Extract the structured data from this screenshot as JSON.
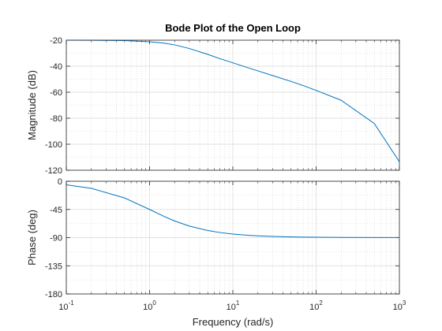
{
  "chart_data": {
    "type": "line",
    "title": "Bode Plot of the Open Loop",
    "xlabel": "Frequency  (rad/s)",
    "x_scale": "log",
    "xlim": [
      0.1,
      1000
    ],
    "x_ticks": [
      {
        "base": "10",
        "exp": "-1"
      },
      {
        "base": "10",
        "exp": "0"
      },
      {
        "base": "10",
        "exp": "1"
      },
      {
        "base": "10",
        "exp": "2"
      },
      {
        "base": "10",
        "exp": "3"
      }
    ],
    "grid": true,
    "line_color": "#0072BD",
    "panels": [
      {
        "name": "magnitude",
        "ylabel": "Magnitude (dB)",
        "ylim": [
          -120,
          -20
        ],
        "yticks": [
          -20,
          -40,
          -60,
          -80,
          -100,
          -120
        ],
        "x": [
          0.1,
          0.2,
          0.5,
          1,
          1.5,
          2,
          3,
          5,
          7,
          10,
          15,
          20,
          30,
          50,
          70,
          100,
          200,
          500,
          1000
        ],
        "y": [
          -20.0,
          -20.1,
          -20.3,
          -21.2,
          -22.3,
          -23.6,
          -26.4,
          -30.9,
          -34.2,
          -37.4,
          -41.1,
          -43.6,
          -47.2,
          -51.7,
          -54.9,
          -58.6,
          -66.2,
          -84.1,
          -113.5
        ]
      },
      {
        "name": "phase",
        "ylabel": "Phase (deg)",
        "ylim": [
          -180,
          0
        ],
        "yticks": [
          0,
          -45,
          -90,
          -135,
          -180
        ],
        "x": [
          0.1,
          0.2,
          0.5,
          1,
          1.5,
          2,
          3,
          5,
          7,
          10,
          15,
          20,
          30,
          50,
          70,
          100,
          200,
          500,
          1000
        ],
        "y": [
          -5.7,
          -11.3,
          -26.6,
          -45.0,
          -56.3,
          -63.4,
          -71.6,
          -78.7,
          -81.9,
          -84.3,
          -86.2,
          -87.1,
          -88.1,
          -88.9,
          -89.2,
          -89.4,
          -89.7,
          -89.9,
          -89.9
        ]
      }
    ]
  }
}
